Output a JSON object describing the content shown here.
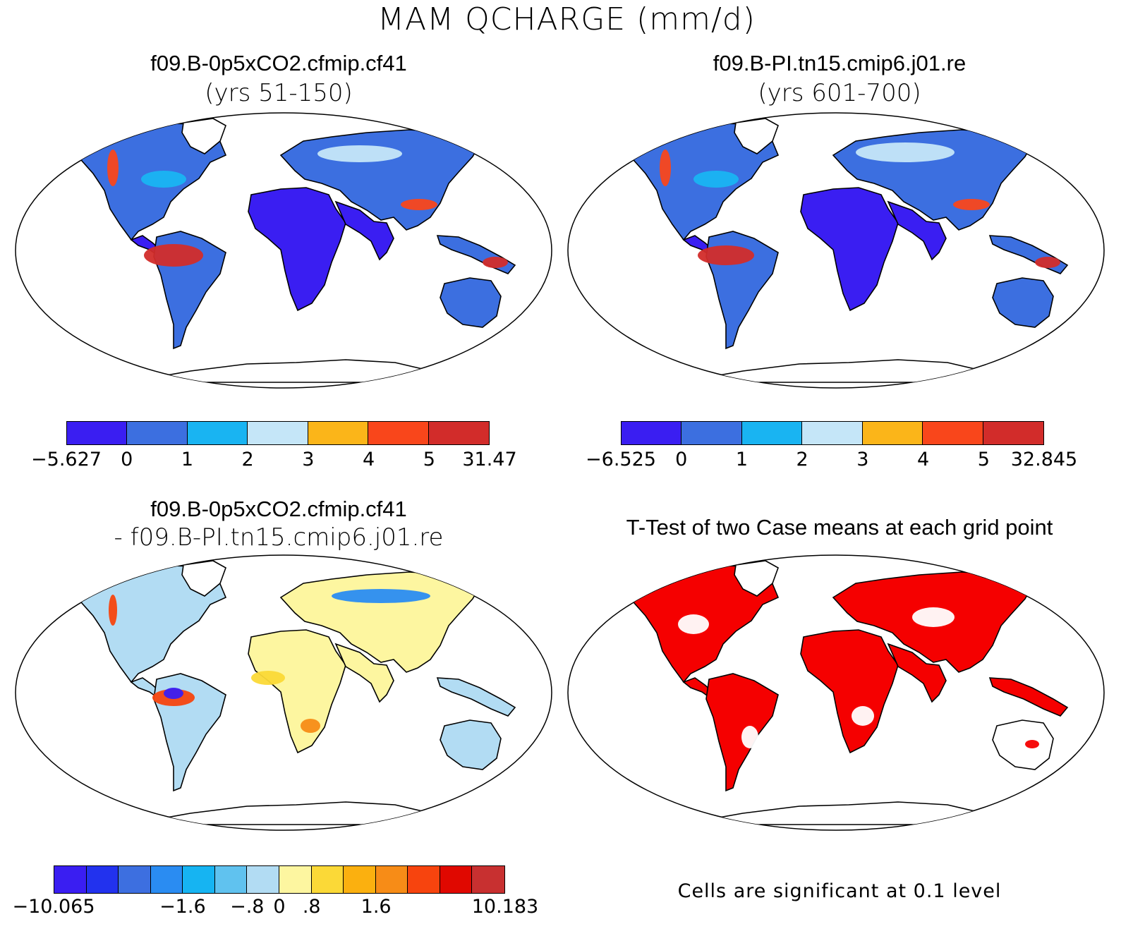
{
  "figure": {
    "title": "MAM QCHARGE (mm/d)"
  },
  "panels": [
    {
      "id": "case1",
      "title": "f09.B-0p5xCO2.cfmip.cf41",
      "subtitle": "(yrs 51-150)",
      "colorbar": {
        "colors": [
          "#3a1ef2",
          "#3c6fe0",
          "#19b4f2",
          "#c5e6f8",
          "#fbb519",
          "#f9461b",
          "#d22c2a"
        ],
        "labels": [
          "-5.627",
          "0",
          "1",
          "2",
          "3",
          "4",
          "5",
          "31.47"
        ]
      }
    },
    {
      "id": "case2",
      "title": "f09.B-PI.tn15.cmip6.j01.re",
      "subtitle": "(yrs 601-700)",
      "colorbar": {
        "colors": [
          "#3a1ef2",
          "#3c6fe0",
          "#19b4f2",
          "#c5e6f8",
          "#fbb519",
          "#f9461b",
          "#d22c2a"
        ],
        "labels": [
          "-6.525",
          "0",
          "1",
          "2",
          "3",
          "4",
          "5",
          "32.845"
        ]
      }
    },
    {
      "id": "difference",
      "title": "f09.B-0p5xCO2.cfmip.cf41",
      "subtitle": "- f09.B-PI.tn15.cmip6.j01.re",
      "colorbar": {
        "colors": [
          "#3a1ef2",
          "#2232ee",
          "#3d6fe0",
          "#2a8cf2",
          "#16b4f2",
          "#60c2ef",
          "#b2dcf3",
          "#fdf6a0",
          "#fbd937",
          "#fbb00f",
          "#f78c17",
          "#f7440e",
          "#e00800",
          "#c83030"
        ],
        "labels": [
          "-10.065",
          "-1.6",
          "-.8",
          "0",
          ".8",
          "1.6",
          "10.183"
        ]
      }
    },
    {
      "id": "ttest",
      "title": "T-Test of two Case means at each grid point",
      "note": "Cells are significant at 0.1 level"
    }
  ]
}
